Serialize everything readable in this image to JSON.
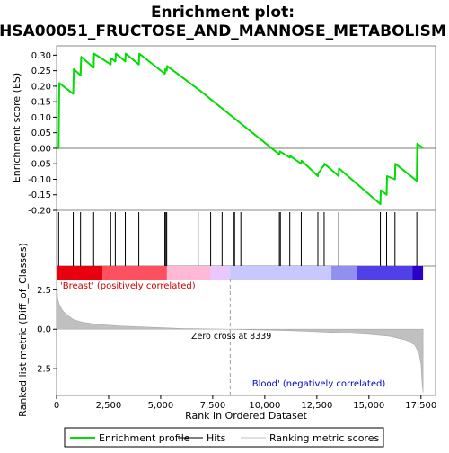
{
  "chart_data": {
    "type": "line",
    "title": "Enrichment plot:",
    "subtitle": "HSA00051_FRUCTOSE_AND_MANNOSE_METABOLISM",
    "top_panel": {
      "ylabel": "Enrichment score (ES)",
      "ylim": [
        -0.2,
        0.33
      ],
      "yticks": [
        0.3,
        0.25,
        0.2,
        0.15,
        0.1,
        0.05,
        0.0,
        -0.05,
        -0.1,
        -0.15,
        -0.2
      ],
      "ytick_labels": [
        "0.30",
        "0.25",
        "0.20",
        "0.15",
        "0.10",
        "0.05",
        "0.00",
        "-0.05",
        "-0.10",
        "-0.15",
        "-0.20"
      ],
      "series": [
        {
          "name": "Enrichment profile",
          "color": "#00dd00",
          "x": [
            0,
            100,
            130,
            800,
            830,
            1150,
            1180,
            1780,
            1800,
            2600,
            2620,
            2820,
            2850,
            3300,
            3320,
            3950,
            3970,
            5200,
            5220,
            5290,
            5310,
            6800,
            6900,
            10700,
            10720,
            11200,
            11220,
            11750,
            11770,
            12550,
            12560,
            12700,
            12720,
            12850,
            12870,
            13550,
            13560,
            15550,
            15570,
            15850,
            15870,
            16250,
            16270,
            17300,
            17320,
            17600
          ],
          "y": [
            0.0,
            0.0,
            0.21,
            0.175,
            0.255,
            0.235,
            0.295,
            0.26,
            0.305,
            0.27,
            0.29,
            0.28,
            0.305,
            0.28,
            0.305,
            0.27,
            0.305,
            0.24,
            0.255,
            0.25,
            0.265,
            0.19,
            0.185,
            -0.02,
            -0.01,
            -0.03,
            -0.025,
            -0.05,
            -0.04,
            -0.09,
            -0.08,
            -0.07,
            -0.065,
            -0.055,
            -0.05,
            -0.09,
            -0.065,
            -0.18,
            -0.135,
            -0.15,
            -0.09,
            -0.1,
            -0.05,
            -0.105,
            0.015,
            0.0
          ]
        }
      ]
    },
    "hits_panel": {
      "hit_positions": [
        100,
        800,
        1150,
        1780,
        2600,
        2820,
        3300,
        3950,
        5200,
        5250,
        5290,
        6800,
        7400,
        7950,
        8500,
        8550,
        8850,
        10700,
        10750,
        11200,
        11750,
        12550,
        12700,
        12850,
        13550,
        15550,
        15850,
        16250,
        17300
      ]
    },
    "heat_bar": {
      "colors": [
        "#e8000f",
        "#ff5060",
        "#ffb8d6",
        "#e8c8ff",
        "#c8c8ff",
        "#9090f0",
        "#5040e8",
        "#2800c8"
      ],
      "boundaries": [
        0,
        2200,
        5300,
        7400,
        8339,
        13200,
        14400,
        17100,
        17600
      ]
    },
    "bottom_panel": {
      "ylabel": "Ranked list metric (Diff_of_Classes)",
      "ylim": [
        -4.2,
        4.0
      ],
      "yticks": [
        2.5,
        0.0,
        -2.5
      ],
      "ytick_labels": [
        "2.5",
        "0.0",
        "-2.5"
      ],
      "positive_label": "'Breast' (positively correlated)",
      "negative_label": "'Blood' (negatively correlated)",
      "zero_cross_label": "Zero cross at 8339",
      "zero_cross": 8339,
      "metric_profile": {
        "x": [
          0,
          50,
          150,
          300,
          500,
          800,
          1200,
          2000,
          3000,
          4500,
          6000,
          7500,
          8339,
          9500,
          11000,
          12500,
          14000,
          15000,
          16000,
          16800,
          17200,
          17400,
          17500,
          17560,
          17600
        ],
        "y": [
          4.0,
          1.9,
          1.5,
          1.15,
          0.9,
          0.62,
          0.45,
          0.3,
          0.2,
          0.12,
          0.05,
          0.02,
          0.0,
          -0.03,
          -0.08,
          -0.15,
          -0.25,
          -0.32,
          -0.45,
          -0.7,
          -1.0,
          -1.5,
          -2.2,
          -3.5,
          -4.0
        ]
      }
    },
    "xaxis": {
      "xlabel": "Rank in Ordered Dataset",
      "xlim": [
        0,
        18200
      ],
      "xticks": [
        0,
        2500,
        5000,
        7500,
        10000,
        12500,
        15000,
        17500
      ],
      "xtick_labels": [
        "0",
        "2,500",
        "5,000",
        "7,500",
        "10,000",
        "12,500",
        "15,000",
        "17,500"
      ]
    },
    "legend": {
      "placement": "bottom",
      "items": [
        {
          "label": "Enrichment profile",
          "color": "#00dd00",
          "kind": "line"
        },
        {
          "label": "Hits",
          "color": "#000000",
          "kind": "line"
        },
        {
          "label": "Ranking metric scores",
          "color": "#c0c0c0",
          "kind": "line"
        }
      ]
    }
  }
}
